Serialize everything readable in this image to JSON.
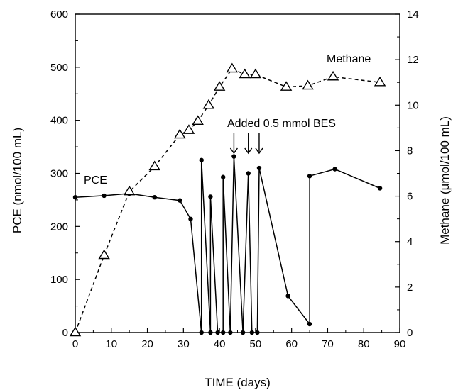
{
  "chart_data": {
    "type": "line",
    "xlabel": "TIME (days)",
    "ylabel_left": "PCE (nmol/100 mL)",
    "ylabel_right": "Methane (µmol/100 mL)",
    "xlim": [
      0,
      90
    ],
    "ylim_left": [
      0,
      600
    ],
    "ylim_right": [
      0,
      14
    ],
    "x_ticks": [
      0,
      10,
      20,
      30,
      40,
      50,
      60,
      70,
      80,
      90
    ],
    "y_left_ticks": [
      0,
      100,
      200,
      300,
      400,
      500,
      600
    ],
    "y_right_ticks": [
      0,
      2,
      4,
      6,
      8,
      10,
      12,
      14
    ],
    "grid": false,
    "series": [
      {
        "name": "PCE",
        "axis": "left",
        "marker": "circle",
        "line": "solid",
        "points": [
          [
            0,
            255
          ],
          [
            8,
            258
          ],
          [
            15,
            262
          ],
          [
            22,
            255
          ],
          [
            29,
            249
          ],
          [
            32,
            214
          ],
          [
            35,
            0
          ],
          [
            35,
            325
          ],
          [
            37.5,
            0
          ],
          [
            37.5,
            256
          ],
          [
            39.5,
            0
          ],
          [
            41,
            0
          ],
          [
            41,
            293
          ],
          [
            43,
            0
          ],
          [
            44,
            332
          ],
          [
            46.5,
            0
          ],
          [
            48,
            300
          ],
          [
            49,
            0
          ],
          [
            50.5,
            0
          ],
          [
            51,
            310
          ],
          [
            59,
            69
          ],
          [
            65,
            16
          ],
          [
            65,
            295
          ],
          [
            72,
            308
          ],
          [
            84.5,
            272
          ]
        ]
      },
      {
        "name": "Methane",
        "axis": "right",
        "marker": "triangle",
        "line": "dashed",
        "points": [
          [
            0,
            0
          ],
          [
            8,
            3.4
          ],
          [
            15,
            6.2
          ],
          [
            22,
            7.3
          ],
          [
            29,
            8.7
          ],
          [
            31.5,
            8.9
          ],
          [
            34,
            9.3
          ],
          [
            37,
            10.0
          ],
          [
            40,
            10.8
          ],
          [
            43.5,
            11.6
          ],
          [
            47,
            11.35
          ],
          [
            50,
            11.35
          ],
          [
            58.5,
            10.8
          ],
          [
            64.5,
            10.85
          ],
          [
            71.5,
            11.25
          ],
          [
            84.5,
            11.0
          ]
        ]
      }
    ],
    "annotations": [
      {
        "text": "Added 0.5 mmol BES",
        "arrows_at_x": [
          44,
          48,
          51
        ]
      }
    ]
  }
}
